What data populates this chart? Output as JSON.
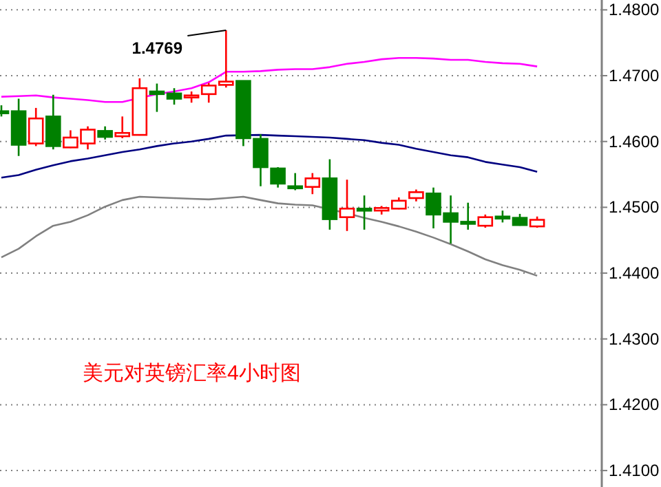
{
  "chart_data": {
    "type": "candlestick",
    "categories": [
      null,
      null,
      null,
      null,
      null,
      null,
      null,
      null,
      null,
      null,
      null,
      null,
      null,
      null,
      null,
      null,
      null,
      null,
      null,
      null,
      null,
      null,
      null,
      null,
      null,
      null,
      null,
      null,
      null,
      null,
      null,
      null
    ],
    "ohlc": [
      [
        1.4646,
        1.4655,
        1.4638,
        1.4645
      ],
      [
        1.4646,
        1.4665,
        1.4578,
        1.4595
      ],
      [
        1.4597,
        1.4651,
        1.4593,
        1.4635
      ],
      [
        1.4638,
        1.4671,
        1.4588,
        1.4593
      ],
      [
        1.4591,
        1.4617,
        1.459,
        1.4606
      ],
      [
        1.4597,
        1.4623,
        1.4588,
        1.4618
      ],
      [
        1.4616,
        1.4623,
        1.4603,
        1.4607
      ],
      [
        1.4608,
        1.4638,
        1.4605,
        1.4613
      ],
      [
        1.461,
        1.4696,
        1.4609,
        1.4681
      ],
      [
        1.4676,
        1.4688,
        1.4645,
        1.4672
      ],
      [
        1.4673,
        1.4681,
        1.4656,
        1.4665
      ],
      [
        1.4667,
        1.4676,
        1.4659,
        1.467
      ],
      [
        1.4672,
        1.4689,
        1.4659,
        1.4685
      ],
      [
        1.4686,
        1.4769,
        1.4682,
        1.4691
      ],
      [
        1.4692,
        1.4692,
        1.4593,
        1.4605
      ],
      [
        1.4604,
        1.4611,
        1.4532,
        1.4561
      ],
      [
        1.4559,
        1.4561,
        1.453,
        1.4536
      ],
      [
        1.4532,
        1.4552,
        1.4526,
        1.453
      ],
      [
        1.4531,
        1.4552,
        1.452,
        1.4544
      ],
      [
        1.4544,
        1.4573,
        1.4466,
        1.4482
      ],
      [
        1.4485,
        1.4542,
        1.4464,
        1.4498
      ],
      [
        1.4498,
        1.4518,
        1.4466,
        1.4495
      ],
      [
        1.4495,
        1.4502,
        1.4489,
        1.4499
      ],
      [
        1.4498,
        1.4515,
        1.4497,
        1.451
      ],
      [
        1.4514,
        1.4527,
        1.4509,
        1.4523
      ],
      [
        1.4521,
        1.453,
        1.4468,
        1.4489
      ],
      [
        1.4491,
        1.4518,
        1.4445,
        1.4478
      ],
      [
        1.4478,
        1.4507,
        1.4466,
        1.4475
      ],
      [
        1.4472,
        1.4489,
        1.4469,
        1.4485
      ],
      [
        1.4486,
        1.4495,
        1.4477,
        1.4484
      ],
      [
        1.4484,
        1.449,
        1.4472,
        1.4473
      ],
      [
        1.4471,
        1.4486,
        1.4469,
        1.4481
      ]
    ],
    "colors": [
      "#008000",
      "#008000",
      "#ff0000",
      "#008000",
      "#ff0000",
      "#ff0000",
      "#008000",
      "#ff0000",
      "#ff0000",
      "#008000",
      "#008000",
      "#ff0000",
      "#ff0000",
      "#ff0000",
      "#008000",
      "#008000",
      "#008000",
      "#008000",
      "#ff0000",
      "#008000",
      "#ff0000",
      "#008000",
      "#ff0000",
      "#ff0000",
      "#ff0000",
      "#008000",
      "#008000",
      "#008000",
      "#ff0000",
      "#008000",
      "#008000",
      "#ff0000"
    ],
    "series": [
      {
        "type": "line",
        "color": "#ff00ff",
        "values": [
          1.4668,
          1.4669,
          1.467,
          1.4667,
          1.4665,
          1.4663,
          1.466,
          1.466,
          null,
          1.4672,
          1.4676,
          1.4681,
          1.469,
          1.4706,
          1.4706,
          1.4707,
          1.4709,
          1.471,
          1.471,
          1.4713,
          1.4718,
          1.4721,
          1.4725,
          1.4727,
          1.4727,
          1.4726,
          1.4724,
          1.4724,
          1.4721,
          1.4719,
          1.4718,
          1.4714
        ]
      },
      {
        "type": "line",
        "color": "#000080",
        "values": [
          1.4545,
          1.4549,
          1.4557,
          1.4564,
          1.457,
          1.4574,
          1.4579,
          1.4584,
          1.4588,
          1.4593,
          1.4597,
          1.46,
          1.4604,
          1.4609,
          null,
          1.461,
          1.4609,
          1.4608,
          1.4607,
          1.4606,
          1.4604,
          1.4602,
          1.4598,
          1.4595,
          1.4589,
          1.4584,
          1.4579,
          1.4576,
          1.4569,
          1.4565,
          1.4561,
          1.4554
        ]
      },
      {
        "type": "line",
        "color": "#808080",
        "values": [
          1.4424,
          1.4437,
          1.4456,
          1.4472,
          1.4478,
          1.4488,
          1.4501,
          1.4511,
          1.4516,
          1.4515,
          1.4514,
          1.4513,
          1.4512,
          1.4514,
          1.4516,
          1.4511,
          1.4506,
          1.4504,
          1.4503,
          null,
          1.4491,
          1.4484,
          1.4478,
          1.4471,
          1.4463,
          1.4454,
          1.4444,
          1.4433,
          1.4421,
          1.4412,
          1.4405,
          1.4396
        ]
      }
    ],
    "ylim": [
      1.4075,
      1.4815
    ],
    "yticks": [
      {
        "value": 1.41,
        "label": "1.4100"
      },
      {
        "value": 1.42,
        "label": "1.4200"
      },
      {
        "value": 1.43,
        "label": "1.4300"
      },
      {
        "value": 1.44,
        "label": "1.4400"
      },
      {
        "value": 1.45,
        "label": "1.4500"
      },
      {
        "value": 1.46,
        "label": "1.4600"
      },
      {
        "value": 1.47,
        "label": "1.4700"
      },
      {
        "value": 1.48,
        "label": "1.4800"
      }
    ],
    "grid": "y",
    "annotations": [
      "1.4769",
      "美元对英镑汇率4小时图"
    ]
  }
}
